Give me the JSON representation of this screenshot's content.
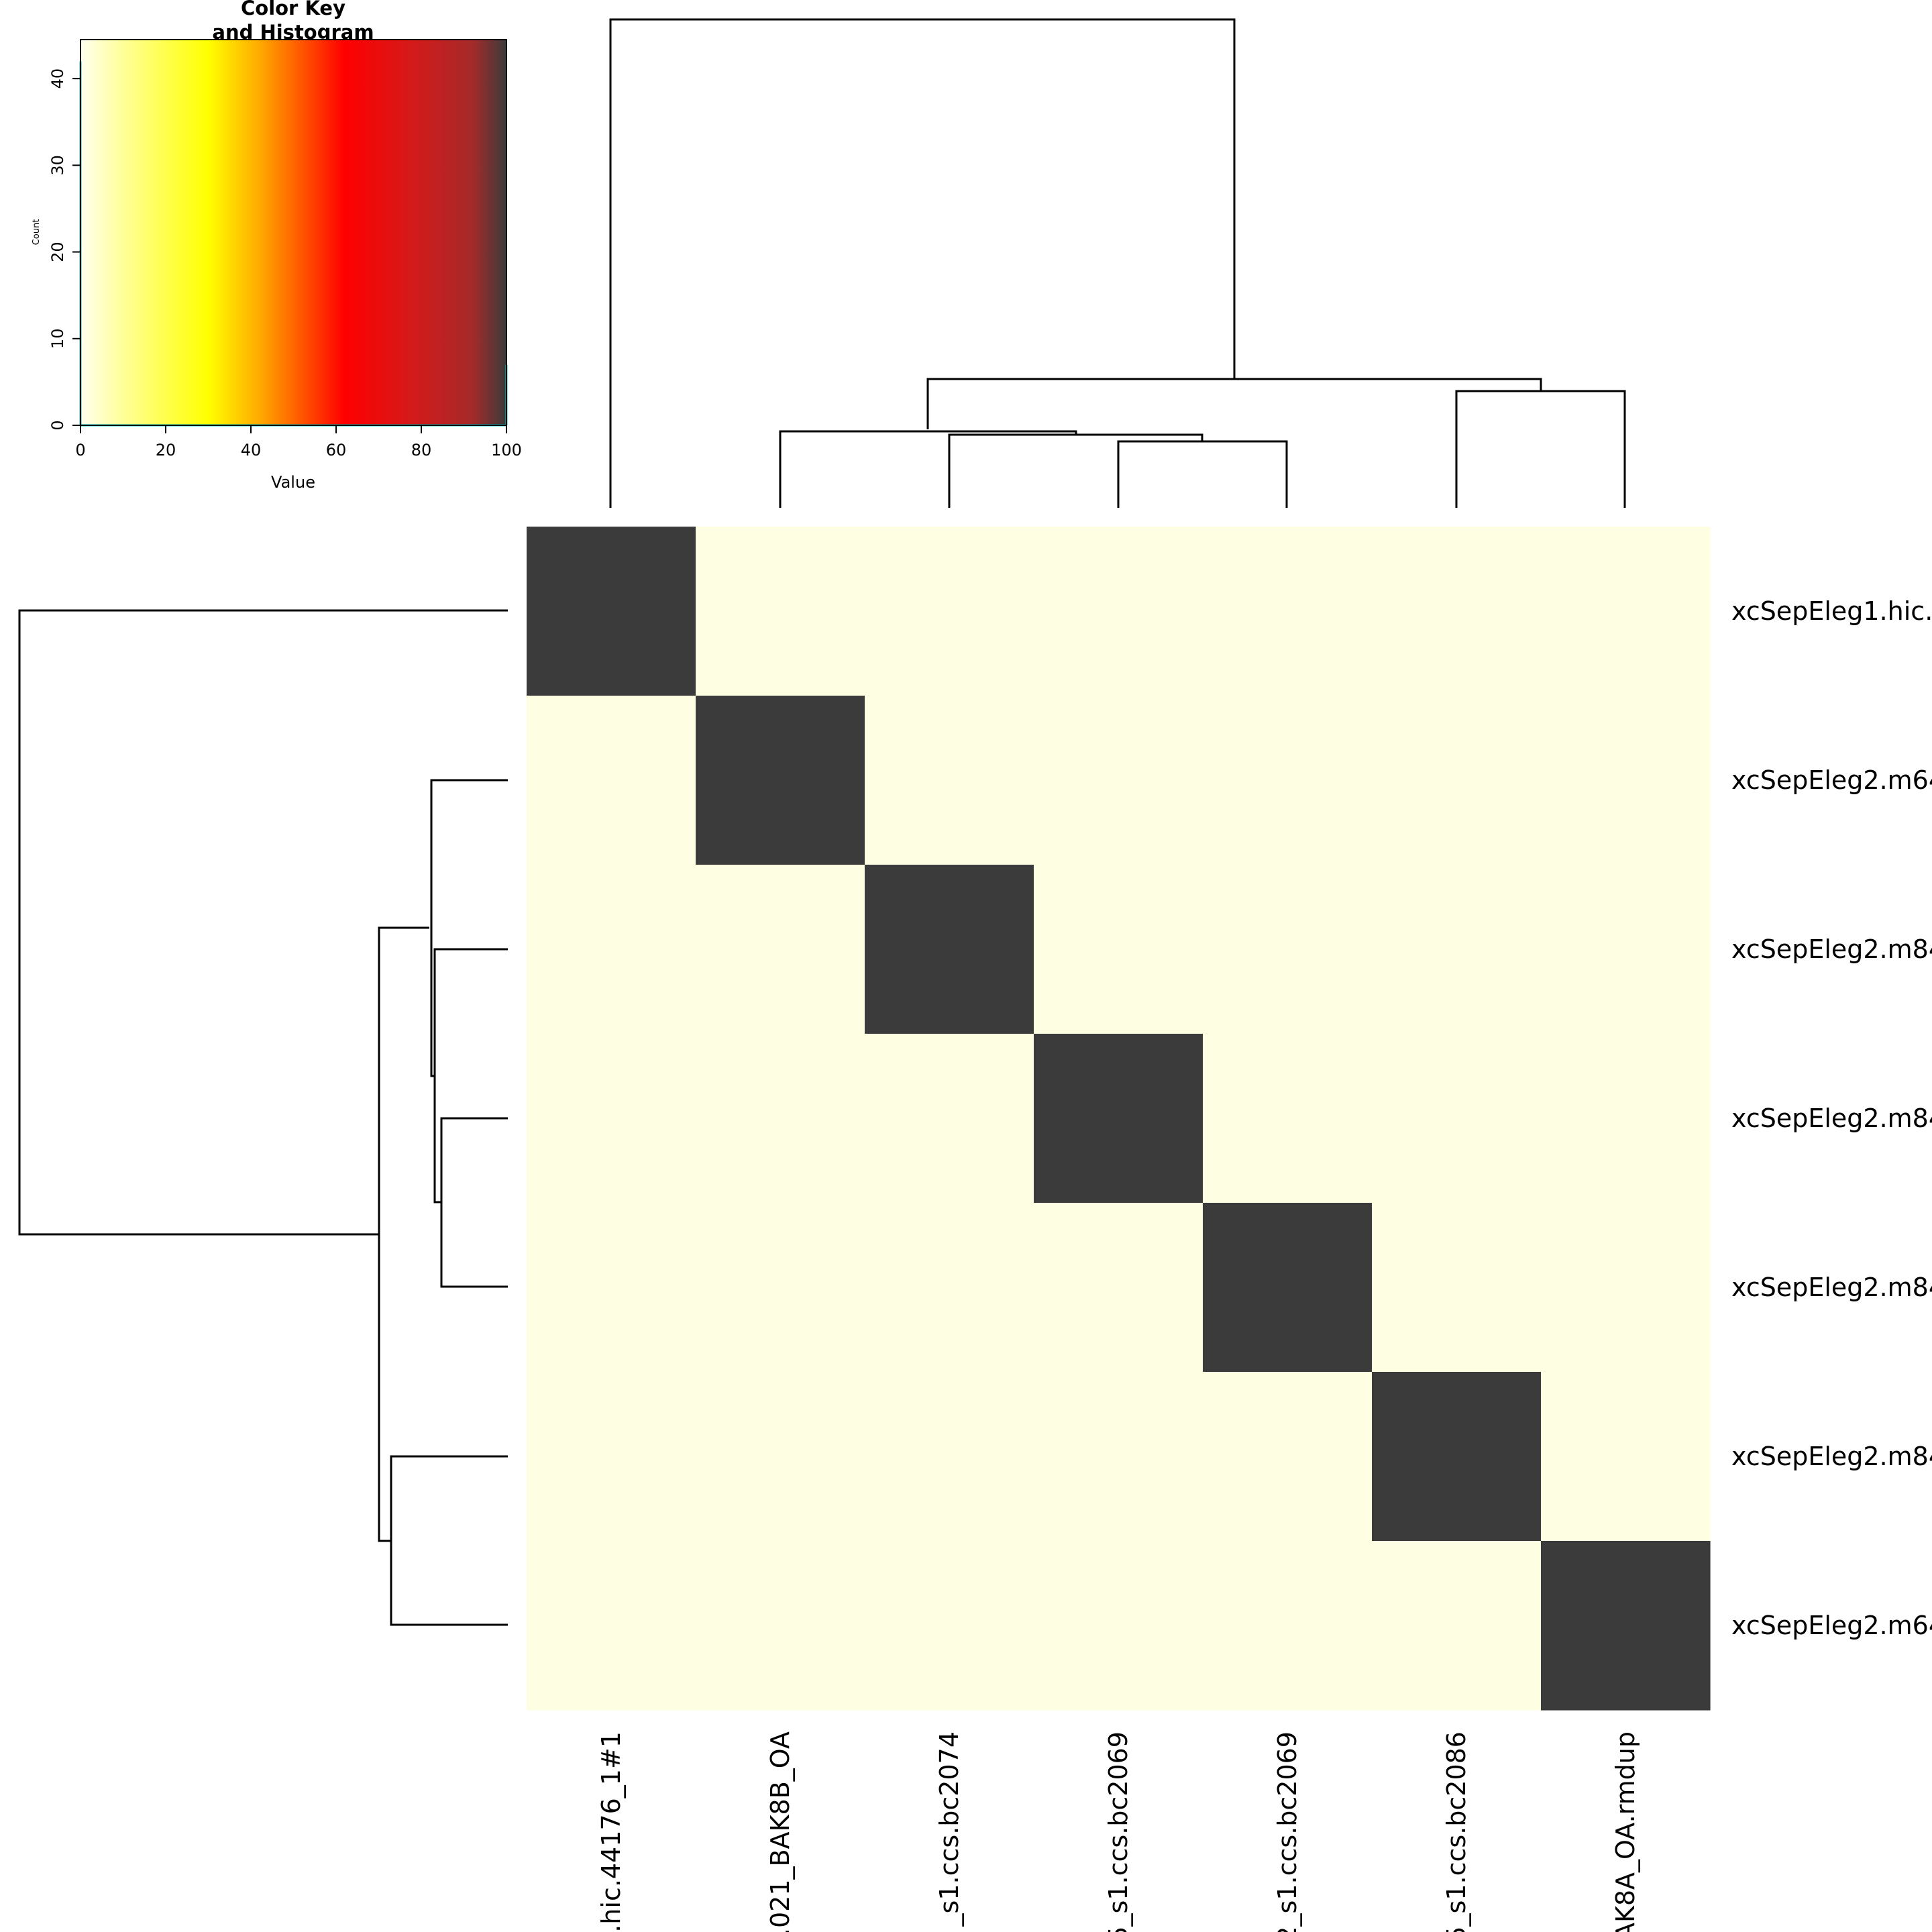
{
  "chart_data": [
    {
      "type": "heatmap",
      "row_labels": [
        "xcSepEleg1.hic.",
        "xcSepEleg2.m64",
        "xcSepEleg2.m84",
        "xcSepEleg2.m84",
        "xcSepEleg2.m84",
        "xcSepEleg2.m84",
        "xcSepEleg2.m64"
      ],
      "col_labels": [
        ".hic.44176_1#1",
        ".021_BAK8B_OA",
        "_s1.ccs.bc2074",
        "5_s1.ccs.bc2069",
        "2_s1.ccs.bc2069",
        "5_s1.ccs.bc2086",
        "AK8A_OA.rmdup"
      ],
      "values": [
        [
          100,
          0,
          0,
          0,
          0,
          0,
          0
        ],
        [
          0,
          100,
          0,
          0,
          0,
          0,
          0
        ],
        [
          0,
          0,
          100,
          0,
          0,
          0,
          0
        ],
        [
          0,
          0,
          0,
          100,
          0,
          0,
          0
        ],
        [
          0,
          0,
          0,
          0,
          100,
          0,
          0
        ],
        [
          0,
          0,
          0,
          0,
          0,
          100,
          0
        ],
        [
          0,
          0,
          0,
          0,
          0,
          0,
          100
        ]
      ],
      "low_color": "#fefee2",
      "high_color": "#3b3b3b"
    },
    {
      "type": "bar",
      "title": "Color Key\nand Histogram",
      "title_lines": [
        "Color Key",
        "and Histogram"
      ],
      "xlabel": "Value",
      "ylabel": "Count",
      "xlim": [
        0,
        100
      ],
      "ylim": [
        0,
        44.5
      ],
      "x_ticks": [
        "0",
        "20",
        "40",
        "60",
        "80",
        "100"
      ],
      "y_ticks": [
        "0",
        "10",
        "20",
        "30",
        "40"
      ],
      "histogram": [
        {
          "x": 0,
          "count": 42
        },
        {
          "x": 100,
          "count": 7
        }
      ],
      "histogram_color": "#00cccc",
      "color_stops": [
        {
          "value": 0,
          "color": "#fffff0"
        },
        {
          "value": 10,
          "color": "#ffff99"
        },
        {
          "value": 30,
          "color": "#ffff00"
        },
        {
          "value": 42,
          "color": "#ffaa00"
        },
        {
          "value": 52,
          "color": "#ff5500"
        },
        {
          "value": 62,
          "color": "#ff0000"
        },
        {
          "value": 78,
          "color": "#d41a1a"
        },
        {
          "value": 92,
          "color": "#a52a2a"
        },
        {
          "value": 100,
          "color": "#3b3b3b"
        }
      ]
    }
  ]
}
